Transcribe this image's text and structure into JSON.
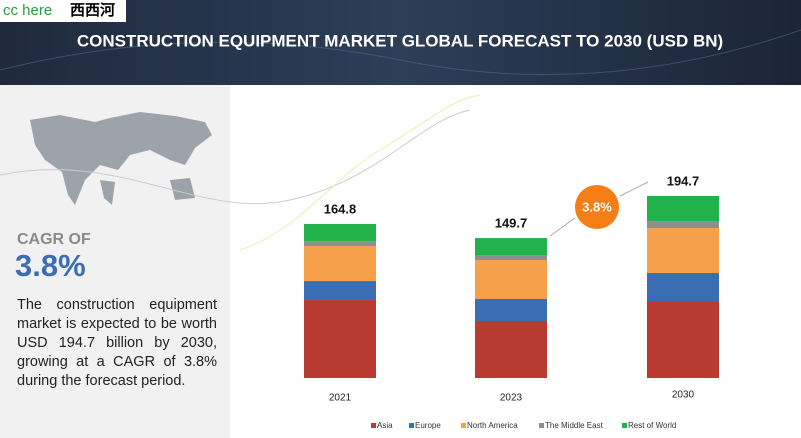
{
  "logo": {
    "text": "cc here",
    "chinese": "西西河"
  },
  "left_panel": {
    "cagr_heading": "CAGR OF",
    "cagr_value": "3.8%",
    "description": "The construction equipment market is expected to be worth USD 194.7 billion by 2030, growing at a CAGR of 3.8% during the forecast period."
  },
  "chart_data": {
    "type": "stacked_bar",
    "title": "CONSTRUCTION EQUIPMENT MARKET GLOBAL FORECAST TO 2030 (USD BN)",
    "categories": [
      "2021",
      "2023",
      "2030"
    ],
    "total_labels": [
      164.8,
      149.7,
      194.7
    ],
    "cagr_annotation": "3.8%",
    "series": [
      {
        "name": "Asia",
        "color": "#b93a30",
        "values": [
          83.4,
          61.0,
          81.3
        ]
      },
      {
        "name": "Europe",
        "color": "#3a6db3",
        "values": [
          20.3,
          23.5,
          31.0
        ]
      },
      {
        "name": "North America",
        "color": "#f6a04b",
        "values": [
          37.4,
          41.7,
          48.1
        ]
      },
      {
        "name": "The Middle East",
        "color": "#8e8e8e",
        "values": [
          5.3,
          5.3,
          7.5
        ]
      },
      {
        "name": "Rest of World",
        "color": "#22b24c",
        "values": [
          18.4,
          18.2,
          26.8
        ]
      }
    ],
    "legend": "bottom"
  }
}
